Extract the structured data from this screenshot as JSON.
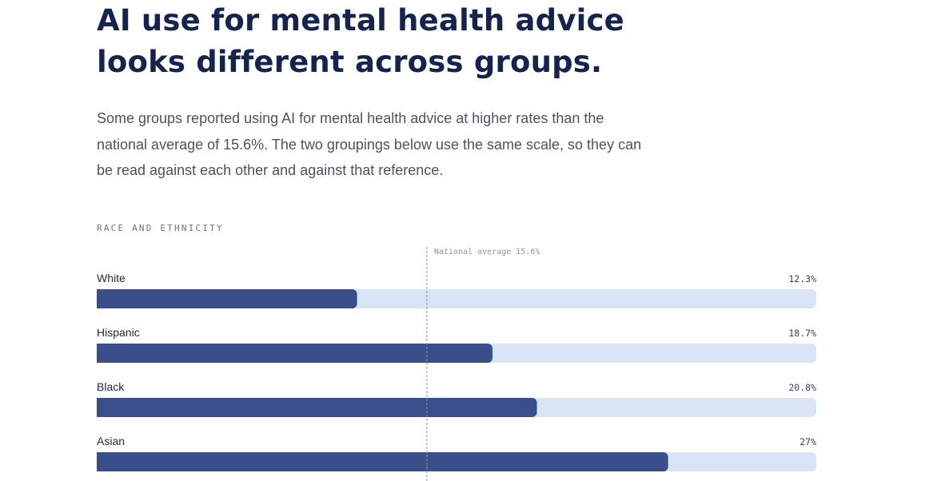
{
  "page": {
    "title": "AI use for mental health advice looks different across groups.",
    "intro": "Some groups reported using AI for mental health advice at higher rates than the national average of 15.6%. The two groupings below use the same scale, so they can be read against each other and against that reference."
  },
  "chart_data": {
    "type": "bar",
    "orientation": "horizontal",
    "title": "RACE AND ETHNICITY",
    "categories": [
      "White",
      "Hispanic",
      "Black",
      "Asian"
    ],
    "values": [
      12.3,
      18.7,
      20.8,
      27
    ],
    "value_labels": [
      "12.3%",
      "18.7%",
      "20.8%",
      "27%"
    ],
    "xlim": [
      0,
      34
    ],
    "reference_line": {
      "value": 15.6,
      "label": "National average 15.6%"
    },
    "colors": {
      "bar": "#3a4f8a",
      "track": "#d9e5f5",
      "reference": "#8a93a5"
    },
    "grid": false,
    "legend": "none"
  }
}
